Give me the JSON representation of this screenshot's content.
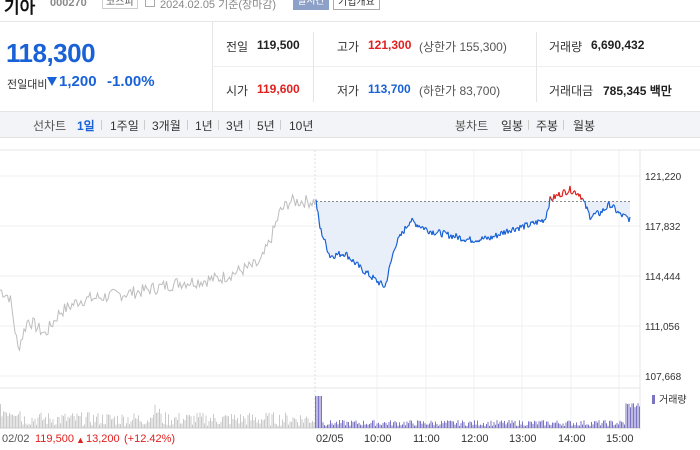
{
  "header": {
    "name": "기아",
    "code": "000270",
    "market": "코스피",
    "date": "2024.02.05 기준(장마감)",
    "status": "실시간",
    "overview_button": "기업개요"
  },
  "price": {
    "current": "118,300",
    "change_label": "전일대비",
    "change_amount": "1,200",
    "change_percent": "-1.00%",
    "direction": "down"
  },
  "stats": {
    "prev_close_label": "전일",
    "prev_close": "119,500",
    "high_label": "고가",
    "high": "121,300",
    "upper_limit": "(상한가 155,300)",
    "volume_label": "거래량",
    "volume": "6,690,432",
    "open_label": "시가",
    "open": "119,600",
    "low_label": "저가",
    "low": "113,700",
    "lower_limit": "(하한가 83,700)",
    "value_label": "거래대금",
    "value": "785,345 백만"
  },
  "toolbar": {
    "line_chart_label": "선차트",
    "periods": [
      "1일",
      "1주일",
      "3개월",
      "1년",
      "3년",
      "5년",
      "10년"
    ],
    "candle_label": "봉차트",
    "candles": [
      "일봉",
      "주봉",
      "월봉"
    ]
  },
  "chart_data": {
    "type": "line",
    "y_ticks": [
      "121,220",
      "117,832",
      "114,444",
      "111,056",
      "107,668"
    ],
    "x_ticks": [
      "02/05",
      "10:00",
      "11:00",
      "12:00",
      "13:00",
      "14:00",
      "15:00"
    ],
    "ylim": [
      107668,
      121220
    ],
    "prev_close": 119500,
    "volume_label": "거래량",
    "prev_day": {
      "date": "02/02",
      "price": "119,500",
      "change": "13,200",
      "change_pct": "(+12.42%)"
    },
    "colors": {
      "up": "#e0201e",
      "down": "#1861d6",
      "prev": "#bdbdbd",
      "fill": "#e8eff9"
    }
  }
}
